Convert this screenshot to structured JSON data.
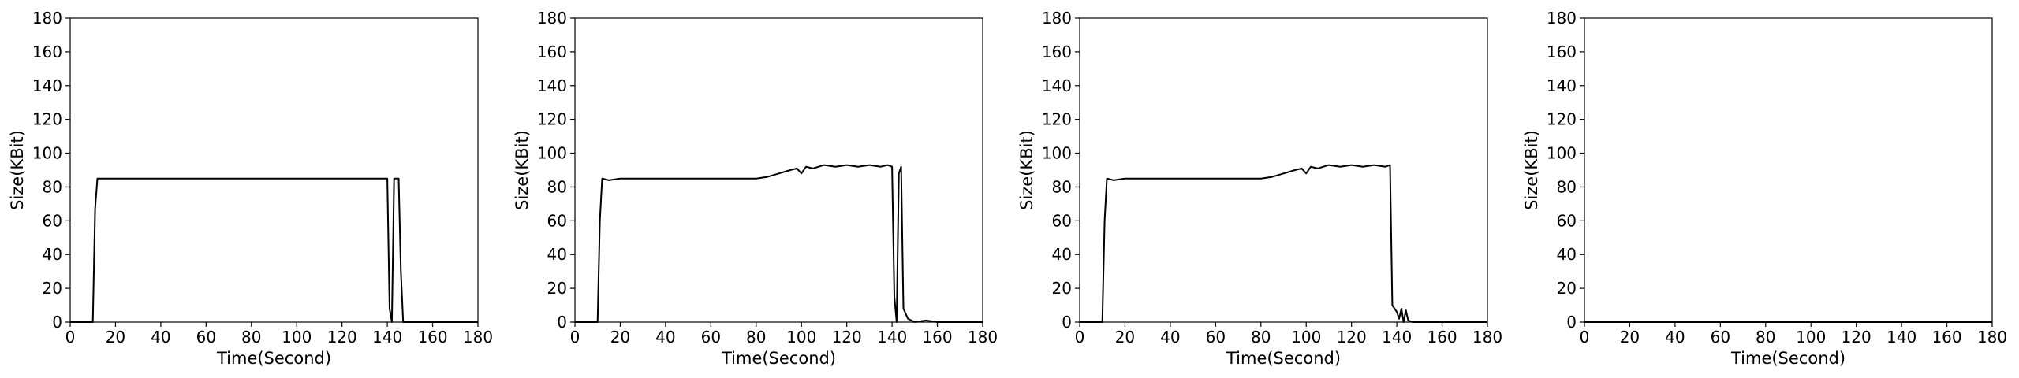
{
  "chart_data": [
    {
      "type": "line",
      "xlabel": "Time(Second)",
      "ylabel": "Size(KBit)",
      "xlim": [
        0,
        180
      ],
      "ylim": [
        0,
        180
      ],
      "xticks": [
        0,
        20,
        40,
        60,
        80,
        100,
        120,
        140,
        160,
        180
      ],
      "yticks": [
        0,
        20,
        40,
        60,
        80,
        100,
        120,
        140,
        160,
        180
      ],
      "grid": false,
      "series": [
        {
          "color": "#000000",
          "x": [
            0,
            2,
            4,
            6,
            8,
            10,
            11,
            12,
            14,
            20,
            30,
            40,
            50,
            60,
            70,
            80,
            90,
            100,
            110,
            120,
            130,
            138,
            140,
            141,
            142,
            143,
            145,
            146,
            147,
            148,
            150,
            160,
            170,
            180
          ],
          "y": [
            0,
            0,
            0,
            0,
            0,
            0,
            67,
            85,
            85,
            85,
            85,
            85,
            85,
            85,
            85,
            85,
            85,
            85,
            85,
            85,
            85,
            85,
            85,
            8,
            0,
            85,
            85,
            30,
            0,
            0,
            0,
            0,
            0,
            0
          ]
        }
      ]
    },
    {
      "type": "line",
      "xlabel": "Time(Second)",
      "ylabel": "Size(KBit)",
      "xlim": [
        0,
        180
      ],
      "ylim": [
        0,
        180
      ],
      "xticks": [
        0,
        20,
        40,
        60,
        80,
        100,
        120,
        140,
        160,
        180
      ],
      "yticks": [
        0,
        20,
        40,
        60,
        80,
        100,
        120,
        140,
        160,
        180
      ],
      "grid": false,
      "series": [
        {
          "color": "#000000",
          "x": [
            0,
            5,
            10,
            11,
            12,
            15,
            20,
            30,
            40,
            50,
            60,
            70,
            80,
            85,
            90,
            95,
            98,
            100,
            102,
            105,
            110,
            115,
            120,
            125,
            130,
            135,
            138,
            140,
            141,
            142,
            143,
            144,
            145,
            147,
            150,
            155,
            160,
            170,
            180
          ],
          "y": [
            0,
            0,
            0,
            60,
            85,
            84,
            85,
            85,
            85,
            85,
            85,
            85,
            85,
            86,
            88,
            90,
            91,
            88,
            92,
            91,
            93,
            92,
            93,
            92,
            93,
            92,
            93,
            92,
            15,
            0,
            88,
            92,
            8,
            2,
            0,
            1,
            0,
            0,
            0
          ]
        }
      ]
    },
    {
      "type": "line",
      "xlabel": "Time(Second)",
      "ylabel": "Size(KBit)",
      "xlim": [
        0,
        180
      ],
      "ylim": [
        0,
        180
      ],
      "xticks": [
        0,
        20,
        40,
        60,
        80,
        100,
        120,
        140,
        160,
        180
      ],
      "yticks": [
        0,
        20,
        40,
        60,
        80,
        100,
        120,
        140,
        160,
        180
      ],
      "grid": false,
      "series": [
        {
          "color": "#000000",
          "x": [
            0,
            5,
            10,
            11,
            12,
            15,
            20,
            30,
            40,
            50,
            60,
            70,
            80,
            85,
            90,
            95,
            98,
            100,
            102,
            105,
            110,
            115,
            120,
            125,
            130,
            135,
            137,
            138,
            139,
            140,
            141,
            142,
            143,
            144,
            145,
            147,
            150,
            160,
            170,
            180
          ],
          "y": [
            0,
            0,
            0,
            60,
            85,
            84,
            85,
            85,
            85,
            85,
            85,
            85,
            85,
            86,
            88,
            90,
            91,
            88,
            92,
            91,
            93,
            92,
            93,
            92,
            93,
            92,
            93,
            10,
            8,
            6,
            2,
            8,
            0,
            7,
            1,
            0,
            0,
            0,
            0,
            0
          ]
        }
      ]
    },
    {
      "type": "line",
      "xlabel": "Time(Second)",
      "ylabel": "Size(KBit)",
      "xlim": [
        0,
        180
      ],
      "ylim": [
        0,
        180
      ],
      "xticks": [
        0,
        20,
        40,
        60,
        80,
        100,
        120,
        140,
        160,
        180
      ],
      "yticks": [
        0,
        20,
        40,
        60,
        80,
        100,
        120,
        140,
        160,
        180
      ],
      "grid": false,
      "series": [
        {
          "color": "#000000",
          "x": [
            0,
            20,
            40,
            60,
            80,
            100,
            120,
            140,
            160,
            180
          ],
          "y": [
            0,
            0,
            0,
            0,
            0,
            0,
            0,
            0,
            0,
            0
          ]
        }
      ]
    }
  ]
}
